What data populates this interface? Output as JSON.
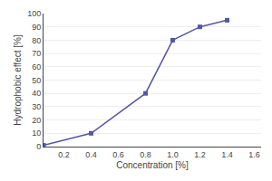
{
  "chart_data": {
    "type": "line",
    "x": [
      0.05,
      0.4,
      0.8,
      1.0,
      1.2,
      1.4
    ],
    "values": [
      1,
      10,
      40,
      80,
      90,
      95
    ],
    "color": "#5555aa",
    "marker": "square",
    "xlabel": "Concentration [%]",
    "ylabel": "Hydrophobic effect [%]",
    "xlim": [
      0.05,
      1.65
    ],
    "ylim": [
      0,
      100
    ],
    "xticks": [
      0.2,
      0.4,
      0.6,
      0.8,
      {
        "value": 1.0,
        "label": "1.0"
      },
      1.2,
      1.4,
      1.6
    ],
    "yticks": [
      0,
      10,
      20,
      30,
      40,
      50,
      60,
      70,
      80,
      90,
      100
    ],
    "grid": "y"
  }
}
